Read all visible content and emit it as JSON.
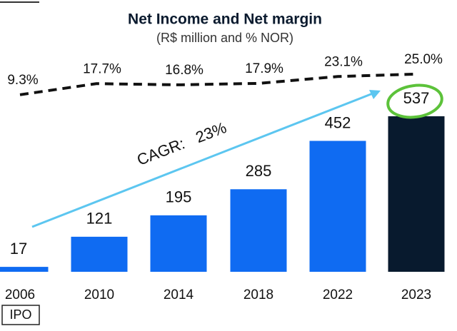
{
  "chart_data": {
    "type": "bar",
    "title": "Net Income and Net margin",
    "subtitle": "(R$ million and % NOR)",
    "categories": [
      "2006",
      "2010",
      "2014",
      "2018",
      "2022",
      "2023"
    ],
    "values": [
      17,
      121,
      195,
      285,
      452,
      537
    ],
    "colors": [
      "#0f6bf2",
      "#0f6bf2",
      "#0f6bf2",
      "#0f6bf2",
      "#0f6bf2",
      "#081a2e"
    ],
    "line_values": [
      9.3,
      17.7,
      16.8,
      17.9,
      23.1,
      25.0
    ],
    "line_value_labels": [
      "9.3%",
      "17.7%",
      "16.8%",
      "17.9%",
      "23.1%",
      "25.0%"
    ],
    "line_color": "#111111",
    "cagr_label": "CAGR:   23%",
    "cagr_color": "#5cc6f0",
    "highlight_color": "#5cc23a",
    "ipo_label": "IPO"
  }
}
